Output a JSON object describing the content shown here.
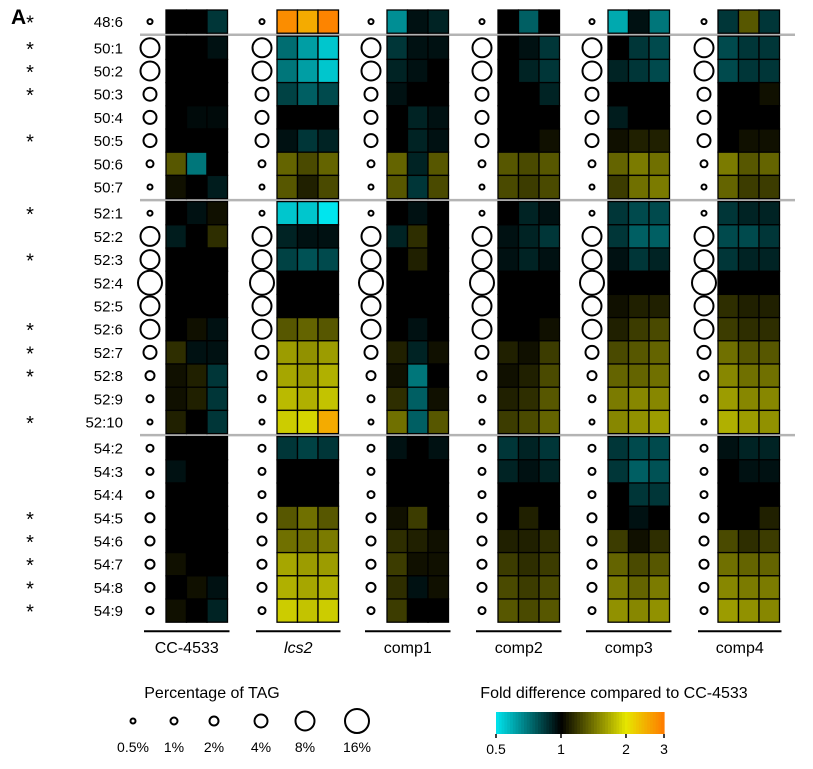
{
  "panel_label": "A",
  "chart_data": {
    "type": "heatmap",
    "groups": [
      "CC-4533",
      "lcs2",
      "comp1",
      "comp2",
      "comp3",
      "comp4"
    ],
    "rows": [
      {
        "label": "48:6",
        "star": true,
        "tag": "0.5%"
      },
      {
        "label": "50:1",
        "star": true,
        "tag": "8%"
      },
      {
        "label": "50:2",
        "star": true,
        "tag": "8%"
      },
      {
        "label": "50:3",
        "star": true,
        "tag": "4%"
      },
      {
        "label": "50:4",
        "star": false,
        "tag": "4%"
      },
      {
        "label": "50:5",
        "star": true,
        "tag": "4%"
      },
      {
        "label": "50:6",
        "star": false,
        "tag": "1%"
      },
      {
        "label": "50:7",
        "star": false,
        "tag": "0.5%"
      },
      {
        "label": "52:1",
        "star": true,
        "tag": "0.5%"
      },
      {
        "label": "52:2",
        "star": false,
        "tag": "8%"
      },
      {
        "label": "52:3",
        "star": true,
        "tag": "8%"
      },
      {
        "label": "52:4",
        "star": false,
        "tag": "16%"
      },
      {
        "label": "52:5",
        "star": false,
        "tag": "8%"
      },
      {
        "label": "52:6",
        "star": true,
        "tag": "8%"
      },
      {
        "label": "52:7",
        "star": true,
        "tag": "4%"
      },
      {
        "label": "52:8",
        "star": true,
        "tag": "2%"
      },
      {
        "label": "52:9",
        "star": false,
        "tag": "1%"
      },
      {
        "label": "52:10",
        "star": true,
        "tag": "0.5%"
      },
      {
        "label": "54:2",
        "star": false,
        "tag": "1%"
      },
      {
        "label": "54:3",
        "star": false,
        "tag": "1%"
      },
      {
        "label": "54:4",
        "star": false,
        "tag": "1%"
      },
      {
        "label": "54:5",
        "star": true,
        "tag": "2%"
      },
      {
        "label": "54:6",
        "star": true,
        "tag": "2%"
      },
      {
        "label": "54:7",
        "star": true,
        "tag": "2%"
      },
      {
        "label": "54:8",
        "star": true,
        "tag": "2%"
      },
      {
        "label": "54:9",
        "star": true,
        "tag": "1%"
      }
    ],
    "fold_change": {
      "CC-4533": [
        [
          1.0,
          1.0,
          0.85
        ],
        [
          1.0,
          1.0,
          0.95
        ],
        [
          1.0,
          1.0,
          1.0
        ],
        [
          1.0,
          1.0,
          1.0
        ],
        [
          1.0,
          0.97,
          0.97
        ],
        [
          1.0,
          1.0,
          1.0
        ],
        [
          1.3,
          0.7,
          1.0
        ],
        [
          1.05,
          1.0,
          0.92
        ],
        [
          1.0,
          0.95,
          1.05
        ],
        [
          0.92,
          1.0,
          1.15
        ],
        [
          1.0,
          1.0,
          1.0
        ],
        [
          1.0,
          1.0,
          1.0
        ],
        [
          1.0,
          1.0,
          1.0
        ],
        [
          1.0,
          1.05,
          0.95
        ],
        [
          1.15,
          0.95,
          0.95
        ],
        [
          1.05,
          1.1,
          0.85
        ],
        [
          1.05,
          1.1,
          0.85
        ],
        [
          1.1,
          1.0,
          0.85
        ],
        [
          1.0,
          1.0,
          1.0
        ],
        [
          0.95,
          1.0,
          1.0
        ],
        [
          1.0,
          1.0,
          1.0
        ],
        [
          1.0,
          1.0,
          1.0
        ],
        [
          1.0,
          1.0,
          1.0
        ],
        [
          1.05,
          1.0,
          1.0
        ],
        [
          1.0,
          1.05,
          0.95
        ],
        [
          1.05,
          1.0,
          0.9
        ]
      ],
      "lcs2": [
        [
          2.8,
          2.5,
          2.9
        ],
        [
          0.72,
          0.62,
          0.55
        ],
        [
          0.7,
          0.62,
          0.55
        ],
        [
          0.82,
          0.75,
          0.8
        ],
        [
          1.0,
          1.0,
          1.0
        ],
        [
          0.95,
          0.85,
          0.9
        ],
        [
          1.35,
          1.25,
          1.35
        ],
        [
          1.3,
          1.1,
          1.25
        ],
        [
          0.55,
          0.55,
          0.5
        ],
        [
          0.9,
          0.95,
          0.95
        ],
        [
          0.82,
          0.78,
          0.8
        ],
        [
          1.0,
          1.0,
          1.0
        ],
        [
          1.0,
          1.0,
          1.0
        ],
        [
          1.3,
          1.35,
          1.3
        ],
        [
          1.6,
          1.55,
          1.6
        ],
        [
          1.65,
          1.6,
          1.7
        ],
        [
          1.75,
          1.7,
          1.8
        ],
        [
          1.85,
          1.9,
          2.5
        ],
        [
          0.85,
          0.82,
          0.85
        ],
        [
          1.0,
          1.0,
          1.0
        ],
        [
          1.0,
          1.0,
          1.0
        ],
        [
          1.3,
          1.4,
          1.3
        ],
        [
          1.4,
          1.4,
          1.45
        ],
        [
          1.65,
          1.6,
          1.6
        ],
        [
          1.7,
          1.65,
          1.7
        ],
        [
          1.85,
          1.8,
          1.85
        ]
      ],
      "comp1": [
        [
          0.65,
          0.95,
          0.9
        ],
        [
          0.85,
          0.95,
          0.95
        ],
        [
          0.9,
          0.95,
          1.0
        ],
        [
          0.95,
          1.0,
          1.0
        ],
        [
          1.0,
          0.9,
          0.95
        ],
        [
          1.0,
          0.9,
          0.95
        ],
        [
          1.35,
          0.9,
          1.3
        ],
        [
          1.3,
          0.85,
          1.25
        ],
        [
          1.0,
          0.95,
          1.0
        ],
        [
          0.9,
          1.15,
          1.0
        ],
        [
          1.0,
          1.1,
          1.0
        ],
        [
          1.0,
          1.0,
          1.0
        ],
        [
          1.0,
          1.0,
          1.0
        ],
        [
          1.0,
          0.95,
          1.0
        ],
        [
          1.1,
          0.9,
          1.05
        ],
        [
          1.05,
          0.7,
          1.0
        ],
        [
          1.15,
          0.75,
          1.05
        ],
        [
          1.4,
          0.75,
          1.3
        ],
        [
          0.95,
          1.0,
          0.95
        ],
        [
          1.0,
          1.0,
          1.0
        ],
        [
          1.0,
          1.0,
          1.0
        ],
        [
          1.05,
          1.2,
          1.0
        ],
        [
          1.15,
          1.1,
          1.05
        ],
        [
          1.2,
          1.05,
          1.05
        ],
        [
          1.15,
          0.95,
          1.05
        ],
        [
          1.2,
          1.0,
          1.0
        ]
      ],
      "comp2": [
        [
          1.0,
          0.75,
          1.0
        ],
        [
          1.0,
          0.95,
          0.85
        ],
        [
          1.0,
          0.9,
          0.85
        ],
        [
          1.0,
          1.0,
          0.9
        ],
        [
          1.0,
          1.0,
          1.0
        ],
        [
          1.0,
          1.0,
          1.05
        ],
        [
          1.3,
          1.25,
          1.3
        ],
        [
          1.25,
          1.2,
          1.25
        ],
        [
          1.0,
          0.9,
          0.95
        ],
        [
          0.95,
          0.9,
          0.85
        ],
        [
          0.95,
          0.9,
          0.95
        ],
        [
          1.0,
          1.0,
          1.0
        ],
        [
          1.0,
          1.0,
          1.0
        ],
        [
          1.0,
          1.0,
          1.05
        ],
        [
          1.1,
          1.05,
          1.2
        ],
        [
          1.05,
          1.1,
          1.25
        ],
        [
          1.1,
          1.15,
          1.3
        ],
        [
          1.2,
          1.25,
          1.35
        ],
        [
          0.85,
          0.9,
          0.85
        ],
        [
          0.9,
          0.95,
          0.9
        ],
        [
          1.0,
          1.0,
          1.0
        ],
        [
          1.0,
          1.1,
          1.0
        ],
        [
          1.1,
          1.1,
          1.15
        ],
        [
          1.2,
          1.15,
          1.2
        ],
        [
          1.25,
          1.2,
          1.25
        ],
        [
          1.3,
          1.25,
          1.3
        ]
      ],
      "comp3": [
        [
          0.6,
          0.95,
          0.7
        ],
        [
          1.0,
          0.85,
          0.8
        ],
        [
          0.9,
          0.85,
          0.8
        ],
        [
          1.0,
          1.0,
          1.0
        ],
        [
          0.92,
          1.0,
          1.0
        ],
        [
          1.05,
          1.1,
          1.1
        ],
        [
          1.35,
          1.45,
          1.4
        ],
        [
          1.2,
          1.4,
          1.45
        ],
        [
          0.85,
          0.8,
          0.8
        ],
        [
          0.85,
          0.75,
          0.75
        ],
        [
          0.95,
          0.85,
          0.9
        ],
        [
          1.0,
          1.0,
          1.0
        ],
        [
          1.05,
          1.1,
          1.1
        ],
        [
          1.1,
          1.2,
          1.25
        ],
        [
          1.25,
          1.3,
          1.35
        ],
        [
          1.35,
          1.35,
          1.4
        ],
        [
          1.45,
          1.5,
          1.5
        ],
        [
          1.5,
          1.55,
          1.6
        ],
        [
          0.85,
          0.8,
          0.8
        ],
        [
          0.85,
          0.75,
          0.78
        ],
        [
          1.0,
          0.85,
          0.85
        ],
        [
          1.0,
          0.95,
          1.0
        ],
        [
          1.2,
          1.05,
          1.15
        ],
        [
          1.35,
          1.25,
          1.3
        ],
        [
          1.45,
          1.35,
          1.45
        ],
        [
          1.55,
          1.5,
          1.55
        ]
      ],
      "comp4": [
        [
          0.85,
          1.3,
          0.85
        ],
        [
          0.8,
          0.85,
          0.85
        ],
        [
          0.8,
          0.85,
          0.85
        ],
        [
          1.0,
          1.0,
          1.05
        ],
        [
          1.0,
          1.0,
          1.0
        ],
        [
          1.0,
          1.05,
          1.05
        ],
        [
          1.45,
          1.3,
          1.35
        ],
        [
          1.35,
          1.2,
          1.2
        ],
        [
          0.85,
          0.9,
          0.9
        ],
        [
          0.8,
          0.8,
          0.85
        ],
        [
          0.85,
          0.9,
          0.9
        ],
        [
          1.0,
          1.0,
          1.0
        ],
        [
          1.15,
          1.1,
          1.1
        ],
        [
          1.2,
          1.15,
          1.15
        ],
        [
          1.4,
          1.3,
          1.3
        ],
        [
          1.5,
          1.4,
          1.4
        ],
        [
          1.6,
          1.5,
          1.5
        ],
        [
          1.7,
          1.6,
          1.55
        ],
        [
          0.95,
          0.9,
          0.9
        ],
        [
          1.0,
          0.95,
          0.95
        ],
        [
          1.0,
          1.0,
          1.0
        ],
        [
          1.0,
          1.0,
          1.1
        ],
        [
          1.25,
          1.15,
          1.2
        ],
        [
          1.4,
          1.35,
          1.35
        ],
        [
          1.5,
          1.45,
          1.45
        ],
        [
          1.6,
          1.55,
          1.5
        ]
      ]
    },
    "row_blocks": [
      [
        0,
        0
      ],
      [
        1,
        7
      ],
      [
        8,
        17
      ],
      [
        18,
        25
      ]
    ],
    "legend_size": {
      "title": "Percentage of TAG",
      "items": [
        {
          "label": "0.5%"
        },
        {
          "label": "1%"
        },
        {
          "label": "2%"
        },
        {
          "label": "4%"
        },
        {
          "label": "8%"
        },
        {
          "label": "16%"
        }
      ]
    },
    "legend_color": {
      "title": "Fold difference compared to CC-4533",
      "ticks": [
        {
          "label": "0.5",
          "value": 0.5
        },
        {
          "label": "1",
          "value": 1
        },
        {
          "label": "2",
          "value": 2
        },
        {
          "label": "3",
          "value": 3
        }
      ],
      "scale": "log",
      "range": [
        0.5,
        3
      ],
      "colors": {
        "low": "#00e5ee",
        "mid": "#000000",
        "high_mid": "#e6e600",
        "high": "#ff7b00"
      }
    }
  }
}
